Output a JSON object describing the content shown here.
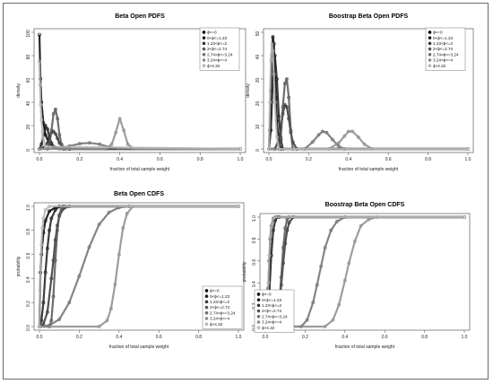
{
  "chart_data": [
    {
      "id": "p1",
      "type": "line",
      "title": "Beta Open PDFS",
      "xlabel": "fraction of total sample weight",
      "ylabel": "density",
      "xlim": [
        0,
        1
      ],
      "ylim": [
        0,
        100
      ],
      "xticks": [
        "0.0",
        "0.2",
        "0.4",
        "0.6",
        "0.8",
        "1.0"
      ],
      "yticks": [
        "0",
        "20",
        "40",
        "60",
        "80",
        "100"
      ],
      "legend_position": "top-right",
      "series": [
        {
          "name": "ϕ<=0",
          "color": "#000000",
          "x": [
            0,
            0.005,
            0.01,
            0.02,
            0.03,
            0.05,
            0.08,
            0.1,
            0.15,
            1.0
          ],
          "y": [
            98,
            60,
            40,
            22,
            12,
            4,
            1,
            0.3,
            0,
            0
          ]
        },
        {
          "name": "0<ϕ<=1.23",
          "color": "#1a1a1a",
          "x": [
            0,
            0.01,
            0.02,
            0.03,
            0.04,
            0.05,
            0.06,
            0.07,
            0.08,
            0.1,
            0.12,
            1.0
          ],
          "y": [
            0,
            4,
            12,
            20,
            17,
            10,
            5,
            2,
            1,
            0.3,
            0,
            0
          ]
        },
        {
          "name": "1.23<ϕ<=2",
          "color": "#333333",
          "x": [
            0,
            0.02,
            0.04,
            0.05,
            0.06,
            0.07,
            0.08,
            0.09,
            0.1,
            0.12,
            0.15,
            1.0
          ],
          "y": [
            0,
            1,
            5,
            10,
            14,
            15,
            13,
            9,
            5,
            1,
            0,
            0
          ]
        },
        {
          "name": "2<ϕ<=2.74",
          "color": "#555555",
          "x": [
            0,
            0.04,
            0.05,
            0.06,
            0.07,
            0.08,
            0.09,
            0.1,
            0.11,
            0.13,
            1.0
          ],
          "y": [
            0,
            0,
            4,
            16,
            30,
            34,
            26,
            12,
            4,
            0,
            0
          ]
        },
        {
          "name": "2.74<ϕ<=3.24",
          "color": "#6e6e6e",
          "x": [
            0,
            0.1,
            0.15,
            0.2,
            0.25,
            0.3,
            0.35,
            0.4,
            1.0
          ],
          "y": [
            0,
            0.5,
            2.5,
            4.5,
            5.2,
            4,
            1.5,
            0.3,
            0
          ]
        },
        {
          "name": "3.24<ϕ<=4",
          "color": "#8c8c8c",
          "x": [
            0,
            0.33,
            0.36,
            0.38,
            0.4,
            0.42,
            0.44,
            0.47,
            1.0
          ],
          "y": [
            0,
            0,
            4,
            14,
            26,
            16,
            4,
            0,
            0
          ]
        },
        {
          "name": "ϕ>4.32",
          "color": "#b5b5b5",
          "x": [
            0,
            0.003,
            0.006,
            0.01,
            0.015,
            0.02,
            0.03,
            1.0
          ],
          "y": [
            75,
            55,
            38,
            25,
            15,
            8,
            2,
            0
          ]
        }
      ]
    },
    {
      "id": "p2",
      "type": "line",
      "title": "Boostrap Beta Open PDFS",
      "xlabel": "fraction of total sample weight",
      "ylabel": "density",
      "xlim": [
        0,
        1
      ],
      "ylim": [
        0,
        50
      ],
      "xticks": [
        "0.0",
        "0.2",
        "0.4",
        "0.6",
        "0.8",
        "1.0"
      ],
      "yticks": [
        "0",
        "10",
        "20",
        "30",
        "40",
        "50"
      ],
      "legend_position": "top-right",
      "series": [
        {
          "name": "ϕ<=0",
          "color": "#000000",
          "x": [
            0,
            0.005,
            0.01,
            0.015,
            0.02,
            0.025,
            0.03,
            0.035,
            0.04,
            0.05,
            0.06,
            1.0
          ],
          "y": [
            0,
            8,
            25,
            40,
            48,
            45,
            35,
            22,
            12,
            3,
            0,
            0
          ]
        },
        {
          "name": "0<ϕ<=1.23",
          "color": "#1a1a1a",
          "x": [
            0,
            0.01,
            0.02,
            0.03,
            0.04,
            0.05,
            0.06,
            0.07,
            1.0
          ],
          "y": [
            0,
            8,
            30,
            40,
            30,
            14,
            4,
            0,
            0
          ]
        },
        {
          "name": "1.23<ϕ<=2",
          "color": "#333333",
          "x": [
            0,
            0.03,
            0.05,
            0.06,
            0.07,
            0.08,
            0.09,
            0.1,
            0.11,
            0.12,
            0.14,
            1.0
          ],
          "y": [
            0,
            0,
            4,
            9,
            15,
            19,
            18,
            13,
            7,
            3,
            0,
            0
          ]
        },
        {
          "name": "2<ϕ<=2.74",
          "color": "#555555",
          "x": [
            0,
            0.05,
            0.06,
            0.07,
            0.08,
            0.09,
            0.1,
            0.11,
            0.12,
            1.0
          ],
          "y": [
            0,
            0,
            5,
            18,
            28,
            30,
            22,
            8,
            0,
            0
          ]
        },
        {
          "name": "2.74<ϕ<=3.24",
          "color": "#6e6e6e",
          "x": [
            0,
            0.18,
            0.22,
            0.25,
            0.27,
            0.29,
            0.32,
            0.35,
            0.38,
            1.0
          ],
          "y": [
            0,
            0,
            3,
            6,
            7.5,
            7,
            4,
            1.2,
            0,
            0
          ]
        },
        {
          "name": "3.24<ϕ<=4",
          "color": "#8c8c8c",
          "x": [
            0,
            0.3,
            0.35,
            0.38,
            0.4,
            0.42,
            0.45,
            0.48,
            0.52,
            1.0
          ],
          "y": [
            0,
            0,
            2.5,
            5.5,
            7.5,
            7.5,
            5,
            2,
            0,
            0
          ]
        },
        {
          "name": "ϕ>4.32",
          "color": "#b5b5b5",
          "x": [
            0,
            0.005,
            0.01,
            0.015,
            0.02,
            0.025,
            0.03,
            0.04,
            0.05,
            1.0
          ],
          "y": [
            0,
            20,
            38,
            45,
            42,
            32,
            20,
            5,
            0,
            0
          ]
        }
      ]
    },
    {
      "id": "p3",
      "type": "line",
      "title": "Beta Open CDFS",
      "xlabel": "fraction of total sample weight",
      "ylabel": "probability",
      "xlim": [
        0,
        1
      ],
      "ylim": [
        0,
        1
      ],
      "xticks": [
        "0.0",
        "0.2",
        "0.4",
        "0.6",
        "0.8",
        "1.0"
      ],
      "yticks": [
        "0.0",
        "0.2",
        "0.4",
        "0.6",
        "0.8",
        "1.0"
      ],
      "legend_position": "bottom-right",
      "series": [
        {
          "name": "ϕ<=0",
          "color": "#000000",
          "x": [
            0,
            0.005,
            0.01,
            0.02,
            0.03,
            0.05,
            0.08,
            0.12,
            1.0
          ],
          "y": [
            0,
            0.45,
            0.6,
            0.78,
            0.88,
            0.96,
            0.99,
            1,
            1
          ]
        },
        {
          "name": "0<ϕ<=1.23",
          "color": "#1a1a1a",
          "x": [
            0,
            0.01,
            0.02,
            0.03,
            0.04,
            0.05,
            0.06,
            0.08,
            0.1,
            1.0
          ],
          "y": [
            0,
            0.05,
            0.2,
            0.45,
            0.65,
            0.8,
            0.9,
            0.97,
            1,
            1
          ]
        },
        {
          "name": "1.23<ϕ<=2",
          "color": "#333333",
          "x": [
            0,
            0.02,
            0.04,
            0.06,
            0.07,
            0.08,
            0.09,
            0.1,
            0.12,
            0.15,
            1.0
          ],
          "y": [
            0,
            0.02,
            0.12,
            0.4,
            0.55,
            0.72,
            0.84,
            0.92,
            0.98,
            1,
            1
          ]
        },
        {
          "name": "2<ϕ<=2.74",
          "color": "#555555",
          "x": [
            0,
            0.05,
            0.06,
            0.07,
            0.08,
            0.09,
            0.1,
            0.11,
            0.13,
            1.0
          ],
          "y": [
            0,
            0,
            0.05,
            0.25,
            0.55,
            0.8,
            0.93,
            0.98,
            1,
            1
          ]
        },
        {
          "name": "2.74<ϕ<=3.24",
          "color": "#6e6e6e",
          "x": [
            0,
            0.05,
            0.1,
            0.15,
            0.2,
            0.25,
            0.3,
            0.35,
            0.4,
            0.45,
            1.0
          ],
          "y": [
            0,
            0.01,
            0.06,
            0.2,
            0.42,
            0.66,
            0.85,
            0.95,
            0.99,
            1,
            1
          ]
        },
        {
          "name": "3.24<ϕ<=4",
          "color": "#8c8c8c",
          "x": [
            0,
            0.3,
            0.34,
            0.36,
            0.38,
            0.4,
            0.42,
            0.44,
            0.47,
            1.0
          ],
          "y": [
            0,
            0,
            0.05,
            0.15,
            0.35,
            0.6,
            0.82,
            0.94,
            1,
            1
          ]
        },
        {
          "name": "ϕ>4.32",
          "color": "#b5b5b5",
          "x": [
            0,
            0.003,
            0.006,
            0.01,
            0.015,
            0.02,
            0.03,
            0.05,
            1.0
          ],
          "y": [
            0,
            0.3,
            0.5,
            0.68,
            0.82,
            0.9,
            0.97,
            1,
            1
          ]
        }
      ]
    },
    {
      "id": "p4",
      "type": "line",
      "title": "Boostrap Beta Open CDFS",
      "xlabel": "fraction of total sample weight",
      "ylabel": "probability",
      "xlim": [
        0,
        1
      ],
      "ylim": [
        0,
        1
      ],
      "xticks": [
        "0.0",
        "0.2",
        "0.4",
        "0.6",
        "0.8",
        "1.0"
      ],
      "yticks": [
        "0.0",
        "0.2",
        "0.4",
        "0.6",
        "0.8",
        "1.0"
      ],
      "legend_position": "bottom-right",
      "series": [
        {
          "name": "ϕ<=0",
          "color": "#000000",
          "x": [
            0,
            0.005,
            0.01,
            0.015,
            0.02,
            0.025,
            0.03,
            0.04,
            0.05,
            1.0
          ],
          "y": [
            0,
            0.02,
            0.12,
            0.35,
            0.6,
            0.8,
            0.92,
            0.99,
            1,
            1
          ]
        },
        {
          "name": "0<ϕ<=1.23",
          "color": "#1a1a1a",
          "x": [
            0,
            0.01,
            0.02,
            0.03,
            0.04,
            0.05,
            0.06,
            0.07,
            1.0
          ],
          "y": [
            0,
            0.05,
            0.3,
            0.65,
            0.88,
            0.97,
            1,
            1,
            1
          ]
        },
        {
          "name": "1.23<ϕ<=2",
          "color": "#333333",
          "x": [
            0,
            0.04,
            0.06,
            0.07,
            0.08,
            0.09,
            0.1,
            0.11,
            0.12,
            0.14,
            1.0
          ],
          "y": [
            0,
            0,
            0.08,
            0.2,
            0.38,
            0.58,
            0.76,
            0.88,
            0.95,
            1,
            1
          ]
        },
        {
          "name": "2<ϕ<=2.74",
          "color": "#555555",
          "x": [
            0,
            0.05,
            0.06,
            0.07,
            0.08,
            0.09,
            0.1,
            0.11,
            0.12,
            1.0
          ],
          "y": [
            0,
            0,
            0.05,
            0.2,
            0.45,
            0.72,
            0.9,
            0.98,
            1,
            1
          ]
        },
        {
          "name": "2.74<ϕ<=3.24",
          "color": "#6e6e6e",
          "x": [
            0,
            0.18,
            0.21,
            0.24,
            0.26,
            0.28,
            0.3,
            0.33,
            0.36,
            0.4,
            1.0
          ],
          "y": [
            0,
            0,
            0.06,
            0.22,
            0.38,
            0.55,
            0.72,
            0.88,
            0.96,
            1,
            1
          ]
        },
        {
          "name": "3.24<ϕ<=4",
          "color": "#8c8c8c",
          "x": [
            0,
            0.3,
            0.34,
            0.37,
            0.4,
            0.42,
            0.45,
            0.48,
            0.52,
            0.56,
            1.0
          ],
          "y": [
            0,
            0,
            0.06,
            0.2,
            0.42,
            0.58,
            0.78,
            0.92,
            0.98,
            1,
            1
          ]
        },
        {
          "name": "ϕ>4.32",
          "color": "#b5b5b5",
          "x": [
            0,
            0.005,
            0.01,
            0.015,
            0.02,
            0.025,
            0.03,
            0.04,
            0.05,
            1.0
          ],
          "y": [
            0,
            0.02,
            0.15,
            0.4,
            0.65,
            0.82,
            0.92,
            0.99,
            1,
            1
          ]
        }
      ]
    }
  ]
}
